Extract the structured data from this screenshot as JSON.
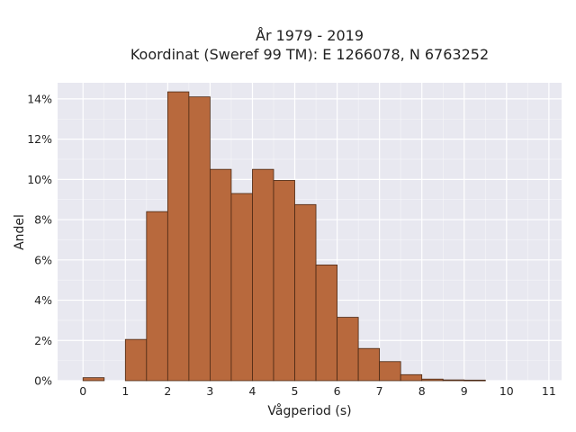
{
  "chart_data": {
    "type": "bar",
    "title_lines": [
      "År 1979 - 2019",
      "Koordinat (Sweref 99 TM): E 1266078, N 6763252"
    ],
    "xlabel": "Vågperiod (s)",
    "ylabel": "Andel",
    "bin_width": 0.5,
    "bin_starts": [
      0,
      0.5,
      1,
      1.5,
      2,
      2.5,
      3,
      3.5,
      4,
      4.5,
      5,
      5.5,
      6,
      6.5,
      7,
      7.5,
      8,
      8.5,
      9,
      9.5,
      10,
      10.5
    ],
    "values": [
      0.15,
      0.0,
      2.05,
      8.4,
      14.35,
      14.1,
      10.5,
      9.3,
      10.5,
      9.95,
      8.75,
      5.75,
      3.15,
      1.6,
      0.95,
      0.3,
      0.08,
      0.04,
      0.03,
      0.0,
      0.0,
      0.0
    ],
    "xlim": [
      -0.6,
      11.3
    ],
    "ylim": [
      0,
      14.8
    ],
    "x_ticks": [
      "0",
      "1",
      "2",
      "3",
      "4",
      "5",
      "6",
      "7",
      "8",
      "9",
      "10",
      "11"
    ],
    "y_ticks": [
      "0%",
      "2%",
      "4%",
      "6%",
      "8%",
      "10%",
      "12%",
      "14%"
    ],
    "grid": true,
    "colors": {
      "bar_fill": "#b8693d",
      "bar_edge": "#4a2814",
      "plot_background": "#e8e8f0",
      "grid": "#ffffff"
    }
  }
}
